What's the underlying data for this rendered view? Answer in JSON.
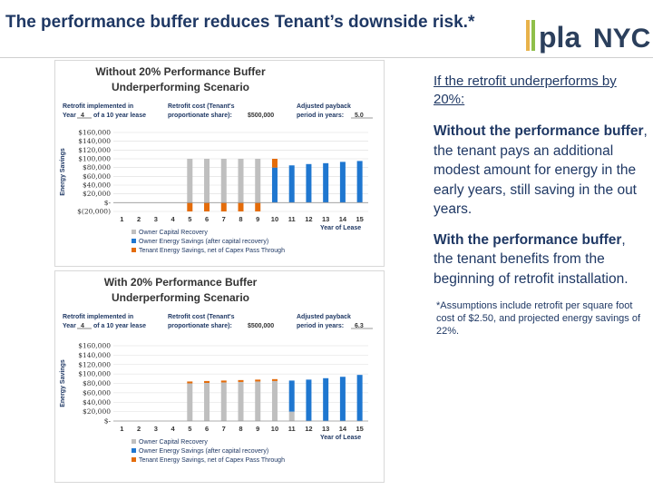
{
  "slide": {
    "title": "The performance buffer reduces Tenant’s downside risk.*"
  },
  "logo": {
    "text_pla": "pla",
    "text_nyc": "NYC"
  },
  "colors": {
    "title": "#1f3864",
    "capital": "#bfbfbf",
    "owner": "#1f77d0",
    "tenant": "#e46c0a",
    "grid": "#dcdcdc"
  },
  "right": {
    "intro": "If the retrofit underperforms by 20%:",
    "para1_bold": "Without the performance buffer",
    "para1_rest": ", the tenant pays an additional modest amount for energy in the early years, still saving in the out years.",
    "para2_bold": "With the performance buffer",
    "para2_rest": ", the tenant benefits from the beginning of retrofit installation.",
    "note": "*Assumptions include retrofit per square foot cost of $2.50, and projected energy savings of 22%."
  },
  "chart_data": [
    {
      "type": "bar",
      "title": "Without 20% Performance Buffer Underperforming Scenario",
      "title_line1": "Without 20% Performance Buffer",
      "title_line2": "Underperforming Scenario",
      "params": {
        "retrofit_label_1": "Retrofit implemented in",
        "retrofit_label_2a": "Year",
        "retrofit_value": "4",
        "retrofit_label_2b": "of a 10 year lease",
        "cost_label_1": "Retrofit cost (Tenant's",
        "cost_label_2": "proportionate share):",
        "cost_value": "$500,000",
        "payback_label_1": "Adjusted payback",
        "payback_label_2": "period in years:",
        "payback_value": "5.0"
      },
      "ylabel": "Energy Savings",
      "xlabel": "Year of Lease",
      "yticks": [
        "$160,000",
        "$140,000",
        "$120,000",
        "$100,000",
        "$80,000",
        "$60,000",
        "$40,000",
        "$20,000",
        "$-",
        "$(20,000)"
      ],
      "ylim": [
        -20000,
        160000
      ],
      "categories": [
        "1",
        "2",
        "3",
        "4",
        "5",
        "6",
        "7",
        "8",
        "9",
        "10",
        "11",
        "12",
        "13",
        "14",
        "15"
      ],
      "series": [
        {
          "name": "Owner Capital Recovery",
          "values": [
            0,
            0,
            0,
            0,
            100000,
            100000,
            100000,
            100000,
            100000,
            0,
            0,
            0,
            0,
            0,
            0
          ]
        },
        {
          "name": "Owner Energy Savings (after capital recovery)",
          "values": [
            0,
            0,
            0,
            0,
            0,
            0,
            0,
            0,
            0,
            80000,
            85000,
            88000,
            90000,
            93000,
            95000
          ]
        },
        {
          "name": "Tenant Energy Savings, net of Capex Pass Through",
          "values": [
            0,
            0,
            0,
            0,
            -20000,
            -20000,
            -20000,
            -20000,
            -20000,
            20000,
            0,
            0,
            0,
            0,
            0
          ]
        }
      ]
    },
    {
      "type": "bar",
      "title": "With 20% Performance Buffer Underperforming Scenario",
      "title_line1": "With 20% Performance Buffer",
      "title_line2": "Underperforming Scenario",
      "params": {
        "retrofit_label_1": "Retrofit implemented in",
        "retrofit_label_2a": "Year",
        "retrofit_value": "4",
        "retrofit_label_2b": "of a 10 year lease",
        "cost_label_1": "Retrofit cost (Tenant's",
        "cost_label_2": "proportionate share):",
        "cost_value": "$500,000",
        "payback_label_1": "Adjusted payback",
        "payback_label_2": "period in years:",
        "payback_value": "6.3"
      },
      "ylabel": "Energy Savings",
      "xlabel": "Year of Lease",
      "yticks": [
        "$160,000",
        "$140,000",
        "$120,000",
        "$100,000",
        "$80,000",
        "$60,000",
        "$40,000",
        "$20,000",
        "$-"
      ],
      "ylim": [
        0,
        160000
      ],
      "categories": [
        "1",
        "2",
        "3",
        "4",
        "5",
        "6",
        "7",
        "8",
        "9",
        "10",
        "11",
        "12",
        "13",
        "14",
        "15"
      ],
      "series": [
        {
          "name": "Owner Capital Recovery",
          "values": [
            0,
            0,
            0,
            0,
            80000,
            81000,
            82000,
            83000,
            84000,
            85000,
            20000,
            0,
            0,
            0,
            0
          ]
        },
        {
          "name": "Owner Energy Savings (after capital recovery)",
          "values": [
            0,
            0,
            0,
            0,
            0,
            0,
            0,
            0,
            0,
            0,
            66000,
            88000,
            91000,
            94000,
            98000
          ]
        },
        {
          "name": "Tenant Energy Savings, net of Capex Pass Through",
          "values": [
            0,
            0,
            0,
            0,
            4000,
            4000,
            4000,
            4000,
            4000,
            4000,
            0,
            0,
            0,
            0,
            0
          ]
        }
      ]
    }
  ]
}
